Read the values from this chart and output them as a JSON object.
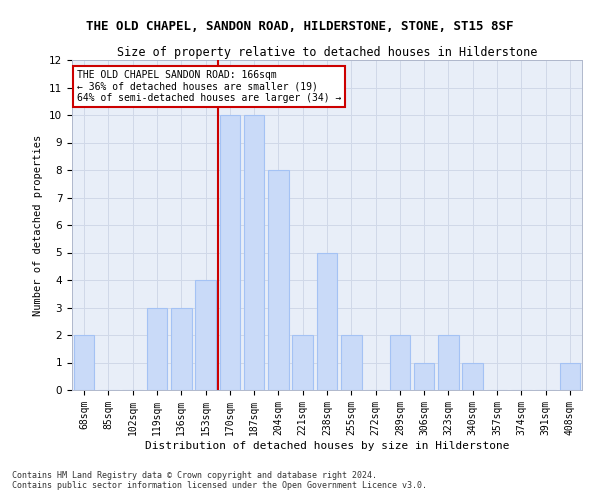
{
  "title": "THE OLD CHAPEL, SANDON ROAD, HILDERSTONE, STONE, ST15 8SF",
  "subtitle": "Size of property relative to detached houses in Hilderstone",
  "xlabel": "Distribution of detached houses by size in Hilderstone",
  "ylabel": "Number of detached properties",
  "categories": [
    "68sqm",
    "85sqm",
    "102sqm",
    "119sqm",
    "136sqm",
    "153sqm",
    "170sqm",
    "187sqm",
    "204sqm",
    "221sqm",
    "238sqm",
    "255sqm",
    "272sqm",
    "289sqm",
    "306sqm",
    "323sqm",
    "340sqm",
    "357sqm",
    "374sqm",
    "391sqm",
    "408sqm"
  ],
  "values": [
    2,
    0,
    0,
    3,
    3,
    4,
    10,
    10,
    8,
    2,
    5,
    2,
    0,
    2,
    1,
    2,
    1,
    0,
    0,
    0,
    1
  ],
  "bar_color": "#c9daf8",
  "bar_edge_color": "#a4c2f4",
  "highlight_index": 6,
  "highlight_line_color": "#cc0000",
  "ylim": [
    0,
    12
  ],
  "yticks": [
    0,
    1,
    2,
    3,
    4,
    5,
    6,
    7,
    8,
    9,
    10,
    11,
    12
  ],
  "annotation_title": "THE OLD CHAPEL SANDON ROAD: 166sqm",
  "annotation_line1": "← 36% of detached houses are smaller (19)",
  "annotation_line2": "64% of semi-detached houses are larger (34) →",
  "annotation_box_color": "#ffffff",
  "annotation_box_edge_color": "#cc0000",
  "footer1": "Contains HM Land Registry data © Crown copyright and database right 2024.",
  "footer2": "Contains public sector information licensed under the Open Government Licence v3.0.",
  "grid_color": "#d0d8e8",
  "background_color": "#ffffff",
  "plot_bg_color": "#e8eef8",
  "title_fontsize": 9,
  "subtitle_fontsize": 8.5,
  "xlabel_fontsize": 8,
  "ylabel_fontsize": 7.5,
  "tick_fontsize": 7,
  "annotation_fontsize": 7,
  "footer_fontsize": 6
}
